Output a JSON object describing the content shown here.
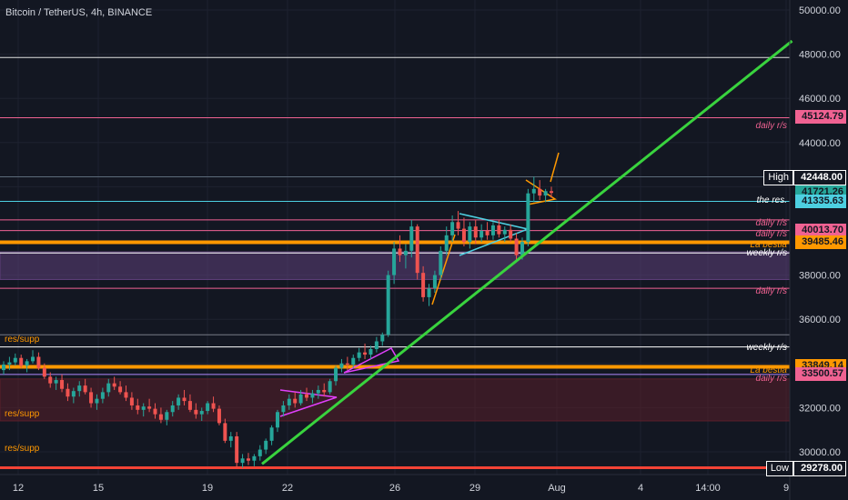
{
  "header": {
    "title": "Bitcoin / TetherUS, 4h, BINANCE"
  },
  "chart_data": {
    "type": "candlestick",
    "title": "Bitcoin / TetherUS, 4h, BINANCE",
    "ylim": [
      29000,
      50500
    ],
    "y_ticks": [
      "30000.00",
      "32000.00",
      "34000.00",
      "36000.00",
      "38000.00",
      "40000.00",
      "42000.00",
      "44000.00",
      "46000.00",
      "48000.00",
      "50000.00"
    ],
    "x_ticks": [
      "12",
      "15",
      "19",
      "22",
      "26",
      "29",
      "Aug",
      "4",
      "14:00",
      "9"
    ],
    "price_tags": [
      {
        "label": "45124.79",
        "value": 45124.79,
        "color": "#f06292"
      },
      {
        "label": "42448.00",
        "value": 42448,
        "color": "#131722",
        "prefix": "High"
      },
      {
        "label": "41721.26",
        "value": 41721.26,
        "color": "#26a69a"
      },
      {
        "label": "41335.63",
        "value": 41335.63,
        "color": "#4dd0e1"
      },
      {
        "label": "40013.70",
        "value": 40013.7,
        "color": "#f06292"
      },
      {
        "label": "39485.46",
        "value": 39485.46,
        "color": "#ff9800"
      },
      {
        "label": "33849.14",
        "value": 33849.14,
        "color": "#ff9800"
      },
      {
        "label": "33500.57",
        "value": 33500.57,
        "color": "#f06292"
      },
      {
        "label": "29278.00",
        "value": 29278,
        "color": "#131722",
        "prefix": "Low"
      }
    ],
    "horizontal_lines": [
      {
        "value": 47850,
        "color": "#e0e0e0"
      },
      {
        "value": 45124.79,
        "color": "#f06292"
      },
      {
        "value": 42448,
        "color": "#5d6b7a"
      },
      {
        "value": 41335.63,
        "color": "#4dd0e1"
      },
      {
        "value": 40500,
        "color": "#f06292"
      },
      {
        "value": 40013.7,
        "color": "#f06292"
      },
      {
        "value": 39485.46,
        "color": "#ff9800"
      },
      {
        "value": 39000,
        "color": "#ffffff"
      },
      {
        "value": 37400,
        "color": "#f06292"
      },
      {
        "value": 35300,
        "color": "#787b86"
      },
      {
        "value": 34750,
        "color": "#ffffff"
      },
      {
        "value": 33849.14,
        "color": "#ff9800"
      },
      {
        "value": 33500.57,
        "color": "#b388ff"
      },
      {
        "value": 29278,
        "color": "#f44336"
      }
    ],
    "zones": [
      {
        "from": 37800,
        "to": 39050,
        "color": "#5e3f7a"
      },
      {
        "from": 31400,
        "to": 33300,
        "color": "#5a1f2a"
      }
    ],
    "zone_labels": [
      {
        "text": "daily r/s",
        "value": 44700,
        "side": "right",
        "color": "#f06292"
      },
      {
        "text": "the res.",
        "value": 41300,
        "side": "right",
        "color": "#ffffff"
      },
      {
        "text": "daily r/s",
        "value": 40280,
        "side": "right",
        "color": "#f06292"
      },
      {
        "text": "daily r/s",
        "value": 39780,
        "side": "right",
        "color": "#f06292"
      },
      {
        "text": "La bestia",
        "value": 39310,
        "side": "right",
        "color": "#ff9800"
      },
      {
        "text": "weekly r/s",
        "value": 38950,
        "side": "right",
        "color": "#ffffff"
      },
      {
        "text": "daily r/s",
        "value": 37200,
        "side": "right",
        "color": "#f06292"
      },
      {
        "text": "weekly r/s",
        "value": 34650,
        "side": "right",
        "color": "#ffffff"
      },
      {
        "text": "La bestia",
        "value": 33640,
        "side": "right",
        "color": "#ff9800"
      },
      {
        "text": "daily r/s",
        "value": 33260,
        "side": "right",
        "color": "#f06292"
      },
      {
        "text": "res/supp",
        "value": 35030,
        "side": "left",
        "color": "#ff9800"
      },
      {
        "text": "res/supp",
        "value": 31650,
        "side": "left",
        "color": "#ff9800"
      },
      {
        "text": "res/supp",
        "value": 30080,
        "side": "left",
        "color": "#ff9800"
      }
    ],
    "trendline": {
      "from": [
        0.309,
        29450
      ],
      "to": [
        0.934,
        48600
      ],
      "color": "#39d33e"
    },
    "candles": [
      [
        33700,
        34100,
        33500,
        33950
      ],
      [
        33950,
        34300,
        33700,
        34050
      ],
      [
        34050,
        34450,
        33900,
        34250
      ],
      [
        34250,
        34400,
        33800,
        33900
      ],
      [
        33900,
        34200,
        33600,
        34100
      ],
      [
        34100,
        34600,
        34000,
        34300
      ],
      [
        34300,
        34500,
        33700,
        33800
      ],
      [
        33800,
        34000,
        33300,
        33400
      ],
      [
        33400,
        33600,
        32900,
        33100
      ],
      [
        33100,
        33400,
        32800,
        33250
      ],
      [
        33250,
        33500,
        32700,
        32850
      ],
      [
        32850,
        33100,
        32300,
        32500
      ],
      [
        32500,
        32900,
        32200,
        32750
      ],
      [
        32750,
        33200,
        32500,
        33000
      ],
      [
        33000,
        33300,
        32600,
        32700
      ],
      [
        32700,
        32900,
        32000,
        32200
      ],
      [
        32200,
        32600,
        31900,
        32400
      ],
      [
        32400,
        32900,
        32200,
        32700
      ],
      [
        32700,
        33300,
        32500,
        33100
      ],
      [
        33100,
        33400,
        32800,
        32950
      ],
      [
        32950,
        33200,
        32600,
        32700
      ],
      [
        32700,
        33000,
        32300,
        32450
      ],
      [
        32450,
        32700,
        31900,
        32100
      ],
      [
        32100,
        32400,
        31700,
        31900
      ],
      [
        31900,
        32200,
        31600,
        32050
      ],
      [
        32050,
        32400,
        31800,
        31950
      ],
      [
        31950,
        32200,
        31500,
        31700
      ],
      [
        31700,
        32000,
        31300,
        31450
      ],
      [
        31450,
        31900,
        31200,
        31800
      ],
      [
        31800,
        32300,
        31600,
        32100
      ],
      [
        32100,
        32600,
        31900,
        32450
      ],
      [
        32450,
        32800,
        32100,
        32300
      ],
      [
        32300,
        32600,
        31800,
        31900
      ],
      [
        31900,
        32200,
        31500,
        31700
      ],
      [
        31700,
        32000,
        31400,
        31850
      ],
      [
        31850,
        32300,
        31700,
        32200
      ],
      [
        32200,
        32500,
        31800,
        31950
      ],
      [
        31950,
        32100,
        31200,
        31300
      ],
      [
        31300,
        31500,
        30400,
        30500
      ],
      [
        30500,
        30900,
        30200,
        30700
      ],
      [
        30700,
        30900,
        29300,
        29500
      ],
      [
        29500,
        29900,
        29278,
        29700
      ],
      [
        29700,
        29950,
        29400,
        29600
      ],
      [
        29600,
        29900,
        29350,
        29800
      ],
      [
        29800,
        30300,
        29600,
        30100
      ],
      [
        30100,
        30600,
        29900,
        30500
      ],
      [
        30500,
        31200,
        30300,
        31100
      ],
      [
        31100,
        31900,
        30900,
        31800
      ],
      [
        31800,
        32300,
        31600,
        32100
      ],
      [
        32100,
        32600,
        31900,
        32400
      ],
      [
        32400,
        32700,
        32000,
        32200
      ],
      [
        32200,
        32800,
        32100,
        32600
      ],
      [
        32600,
        32900,
        32300,
        32450
      ],
      [
        32450,
        32800,
        32200,
        32650
      ],
      [
        32650,
        33000,
        32400,
        32800
      ],
      [
        32800,
        33100,
        32500,
        32700
      ],
      [
        32700,
        33300,
        32600,
        33200
      ],
      [
        33200,
        33900,
        33000,
        33800
      ],
      [
        33800,
        34200,
        33600,
        34000
      ],
      [
        34000,
        34300,
        33700,
        33950
      ],
      [
        33950,
        34400,
        33800,
        34250
      ],
      [
        34250,
        34700,
        34100,
        34500
      ],
      [
        34500,
        34900,
        34200,
        34400
      ],
      [
        34400,
        34800,
        34200,
        34650
      ],
      [
        34650,
        35200,
        34500,
        35000
      ],
      [
        35000,
        35400,
        34800,
        35300
      ],
      [
        35300,
        38200,
        35200,
        38000
      ],
      [
        38000,
        39500,
        37600,
        39200
      ],
      [
        39200,
        39800,
        38600,
        38900
      ],
      [
        38900,
        39400,
        38300,
        39100
      ],
      [
        39100,
        40500,
        38800,
        40200
      ],
      [
        40200,
        40300,
        37800,
        38100
      ],
      [
        38100,
        38400,
        36800,
        37000
      ],
      [
        37000,
        37600,
        36600,
        37400
      ],
      [
        37400,
        38200,
        37200,
        38000
      ],
      [
        38000,
        39300,
        37800,
        39100
      ],
      [
        39100,
        40200,
        38900,
        39800
      ],
      [
        39800,
        40700,
        39500,
        40400
      ],
      [
        40400,
        40900,
        39800,
        40100
      ],
      [
        40100,
        40600,
        39300,
        39500
      ],
      [
        39500,
        40400,
        39200,
        40200
      ],
      [
        40200,
        40500,
        39400,
        39700
      ],
      [
        39700,
        40300,
        39500,
        40000
      ],
      [
        40000,
        40400,
        39600,
        39800
      ],
      [
        39800,
        40400,
        39600,
        40250
      ],
      [
        40250,
        40500,
        39700,
        39850
      ],
      [
        39850,
        40200,
        39500,
        40050
      ],
      [
        40050,
        40300,
        39500,
        39650
      ],
      [
        39650,
        39900,
        38600,
        38900
      ],
      [
        38900,
        39700,
        38700,
        39500
      ],
      [
        39500,
        41900,
        39300,
        41700
      ],
      [
        41700,
        42448,
        41300,
        41900
      ],
      [
        41900,
        42300,
        41400,
        41600
      ],
      [
        41600,
        41900,
        41300,
        41800
      ],
      [
        41800,
        42000,
        41500,
        41721.26
      ]
    ]
  }
}
